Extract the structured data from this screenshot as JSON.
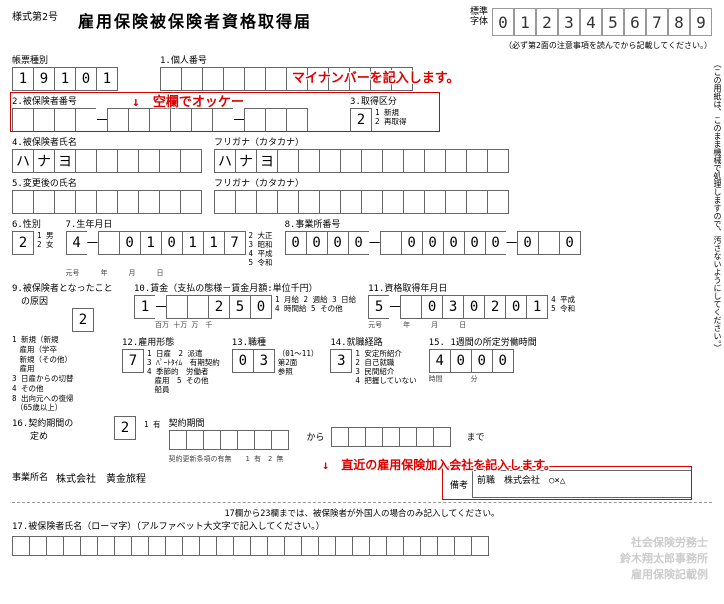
{
  "form_number": "様式第2号",
  "title": "雇用保険被保険者資格取得届",
  "sample_label": "標準\n字体",
  "sample_digits": [
    "0",
    "1",
    "2",
    "3",
    "4",
    "5",
    "6",
    "7",
    "8",
    "9"
  ],
  "sample_note": "（必ず第2面の注意事項を読んでから記載してください。）",
  "vertical_note": "（この用紙は、このまま機械で処理しますので、汚さないようにしてください。）",
  "f1": {
    "label": "帳票種別",
    "vals": [
      "1",
      "9",
      "1",
      "0",
      "1"
    ]
  },
  "f1b": {
    "label": "1.個人番号",
    "vals": [
      "",
      "",
      "",
      "",
      "",
      "",
      "",
      "",
      "",
      "",
      "",
      ""
    ]
  },
  "annot1": "マイナンバーを記入します。",
  "f2": {
    "label": "2.被保険者番号",
    "vals": [
      "",
      "",
      "",
      "",
      "",
      "",
      "",
      "",
      "",
      "",
      "",
      "",
      ""
    ]
  },
  "annot2": "↓　空欄でオッケー",
  "f3": {
    "label": "3.取得区分",
    "vals": [
      "2"
    ],
    "opts": "1 新規\n2 再取得"
  },
  "f4": {
    "label": "4.被保険者氏名",
    "vals": [
      "ハ",
      "ナ",
      "ヨ",
      "",
      "",
      "",
      "",
      "",
      ""
    ]
  },
  "f4b": {
    "label": "フリガナ（カタカナ）",
    "vals": [
      "ハ",
      "ナ",
      "ヨ",
      "",
      "",
      "",
      "",
      "",
      "",
      "",
      "",
      "",
      "",
      ""
    ]
  },
  "f5": {
    "label": "5.変更後の氏名",
    "vals": [
      "",
      "",
      "",
      "",
      "",
      "",
      "",
      "",
      ""
    ]
  },
  "f5b": {
    "label": "フリガナ（カタカナ）",
    "vals": [
      "",
      "",
      "",
      "",
      "",
      "",
      "",
      "",
      "",
      "",
      "",
      "",
      "",
      ""
    ]
  },
  "f6": {
    "label": "6.性別",
    "vals": [
      "2"
    ],
    "opts": "1 男\n2 女"
  },
  "f7": {
    "label": "7.生年月日",
    "vals": [
      "4",
      "",
      "0",
      "1",
      "0",
      "1",
      "1",
      "7"
    ],
    "sub": "元号　　　年　　　月　　　日",
    "opts": "2 大正\n3 昭和\n4 平成\n5 令和"
  },
  "f8": {
    "label": "8.事業所番号",
    "vals": [
      "0",
      "0",
      "0",
      "0",
      "",
      "0",
      "0",
      "0",
      "0",
      "0",
      "0",
      "",
      "0"
    ]
  },
  "f9": {
    "label": "9.被保険者となったこと\n　の原因",
    "vals": [
      "2"
    ]
  },
  "f9list": "1 新規（新規\n　雇用（学卒\n　新規（その他）\n　雇用\n3 日雇からの切替\n4 その他\n8 出向元への復帰\n　（65歳以上）",
  "f10": {
    "label": "10.賃金（支払の態様－賃金月額:単位千円）",
    "vals": [
      "1",
      "",
      "",
      "2",
      "5",
      "0"
    ],
    "sub": "　　　百万 十万 万　千",
    "opts": "1 月給 2 週給 3 日給\n4 時間給 5 その他"
  },
  "f11": {
    "label": "11.資格取得年月日",
    "vals": [
      "5",
      "",
      "0",
      "3",
      "0",
      "2",
      "0",
      "1"
    ],
    "sub": "元号　　　年　　　月　　　日",
    "opts": "4 平成\n5 令和"
  },
  "f12": {
    "label": "12.雇用形態",
    "vals": [
      "7"
    ],
    "opts": "1 日雇　2 派遣\n3 ﾊﾟｰﾄﾀｲﾑ　有期契約\n4 季節的　労働者\n　雇用　5 その他\n　船員"
  },
  "f13": {
    "label": "13.職種",
    "vals": [
      "0",
      "3"
    ],
    "sub": "（01～11）\n第2面\n参照"
  },
  "f14": {
    "label": "14.就職経路",
    "vals": [
      "3"
    ],
    "opts": "1 安定所紹介\n2 自己就職\n3 民間紹介\n4 把握していない"
  },
  "f15": {
    "label": "15. 1週間の所定労働時間",
    "vals": [
      "4",
      "0",
      "0",
      "0"
    ],
    "sub": "時間　　　　分"
  },
  "f16": {
    "label": "16.契約期間の\n　　定め",
    "vals": [
      "2"
    ],
    "opts": "1 有",
    "period_label": "契約期間",
    "renew": "契約更新条項の有無　　1 有　2 無"
  },
  "f17_note": "17欄から23欄までは、被保険者が外国人の場合のみ記入してください。",
  "f17": {
    "label": "17.被保険者氏名（ローマ字）（アルファベット大文字で記入してください。）"
  },
  "biz_name_label": "事業所名",
  "biz_name": "株式会社　黄金旅程",
  "remark_label": "備考",
  "remark": "前職　株式会社　○×△",
  "annot3": "↓　直近の雇用保険加入会社を記入します。",
  "watermark": "社会保険労務士\n鈴木翔太郎事務所\n雇用保険記載例",
  "colors": {
    "red": "#d00",
    "border": "#666"
  }
}
